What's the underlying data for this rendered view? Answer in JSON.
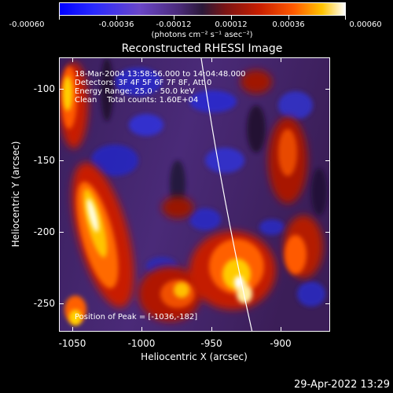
{
  "colorbar": {
    "tick_labels": [
      "-0.00060",
      "-0.00036",
      "-0.00012",
      "0.00012",
      "0.00036",
      "0.00060"
    ],
    "units": "(photons cm⁻² s⁻¹ asec⁻²)"
  },
  "title": "Reconstructed RHESSI Image",
  "annotations": {
    "time_range": "18-Mar-2004 13:58:56.000 to 14:04:48.000",
    "detectors": "Detectors: 3F 4F 5F 6F 7F 8F, Att 0",
    "energy": "Energy Range: 25.0 - 50.0 keV",
    "method": "Clean    Total counts: 1.60E+04",
    "peak": "Position of Peak = [-1036,-182]"
  },
  "axes": {
    "x_title": "Heliocentric X (arcsec)",
    "y_title": "Heliocentric Y (arcsec)",
    "x_ticks": [
      "-1050",
      "-1000",
      "-950",
      "-900"
    ],
    "y_ticks": [
      "-100",
      "-150",
      "-200",
      "-250"
    ]
  },
  "timestamp": "29-Apr-2022 13:29",
  "colors": {
    "background": "#000000",
    "limb_line": "#ffffff"
  }
}
